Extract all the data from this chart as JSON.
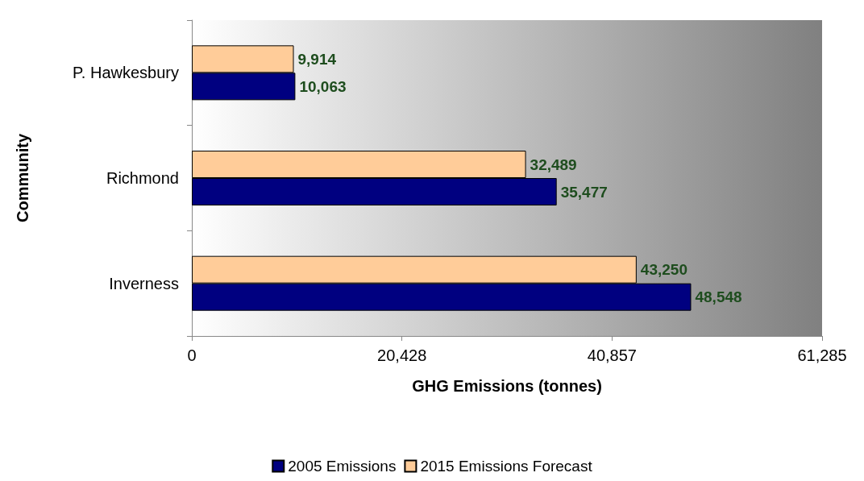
{
  "chart_data": {
    "type": "bar",
    "orientation": "horizontal",
    "xlabel": "GHG Emissions (tonnes)",
    "ylabel": "Community",
    "categories": [
      "P. Hawkesbury",
      "Richmond",
      "Inverness"
    ],
    "series": [
      {
        "name": "2005 Emissions",
        "color": "#000080",
        "values": [
          10063,
          35477,
          48548
        ],
        "value_labels": [
          "10,063",
          "35,477",
          "48,548"
        ]
      },
      {
        "name": "2015 Emissions Forecast",
        "color": "#ffcc99",
        "values": [
          9914,
          32489,
          43250
        ],
        "value_labels": [
          "9,914",
          "32,489",
          "43,250"
        ]
      }
    ],
    "xlim": [
      0,
      61285
    ],
    "xticks": [
      0,
      {
        "value": 20428,
        "label": "20,428"
      },
      {
        "value": 40857,
        "label": "40,857"
      },
      {
        "value": 61285,
        "label": "61,285"
      }
    ],
    "grid": false,
    "legend": "bottom"
  }
}
